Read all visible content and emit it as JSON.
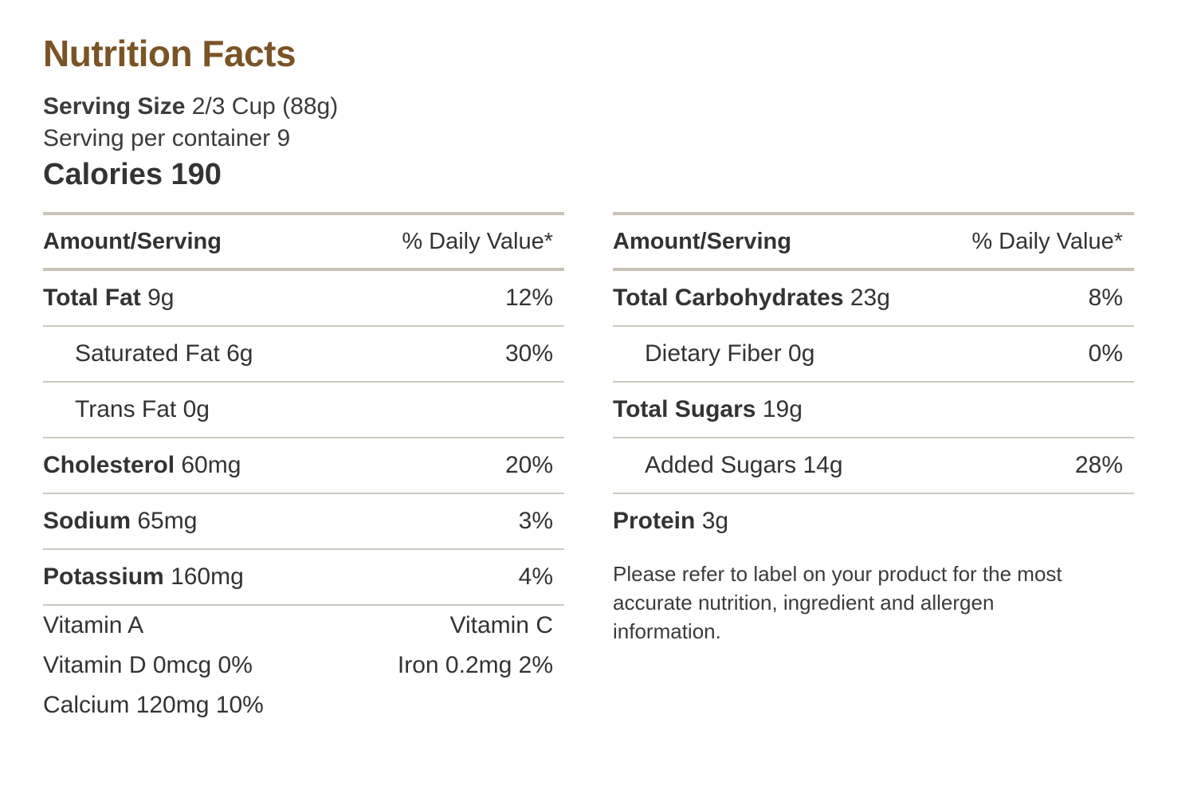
{
  "title": "Nutrition Facts",
  "serving": {
    "size_label": "Serving Size",
    "size_value": "2/3 Cup (88g)",
    "per_container": "Serving per container 9"
  },
  "calories": "Calories 190",
  "header": {
    "amount": "Amount/Serving",
    "dv": "% Daily Value*"
  },
  "left": {
    "rows": [
      {
        "name": "Total Fat",
        "amt": "9g",
        "dv": "12%"
      },
      {
        "name": "Saturated Fat 6g",
        "dv": "30%"
      },
      {
        "name": "Trans Fat 0g",
        "dv": ""
      },
      {
        "name": "Cholesterol",
        "amt": "60mg",
        "dv": "20%"
      },
      {
        "name": "Sodium",
        "amt": "65mg",
        "dv": "3%"
      },
      {
        "name": "Potassium",
        "amt": "160mg",
        "dv": "4%"
      }
    ],
    "vitamins": {
      "a": "Vitamin A",
      "c": "Vitamin C",
      "d": "Vitamin D 0mcg 0%",
      "iron": "Iron 0.2mg 2%",
      "calcium": "Calcium 120mg 10%"
    }
  },
  "right": {
    "rows": [
      {
        "name": "Total Carbohydrates",
        "amt": "23g",
        "dv": "8%"
      },
      {
        "name": "Dietary Fiber 0g",
        "dv": "0%"
      },
      {
        "name": "Total Sugars",
        "amt": "19g",
        "dv": ""
      },
      {
        "name": "Added Sugars 14g",
        "dv": "28%"
      },
      {
        "name": "Protein",
        "amt": "3g",
        "dv": ""
      }
    ],
    "note": "Please refer to label on your product for the most accurate nutrition, ingredient and allergen information."
  },
  "colors": {
    "title": "#7a5326",
    "rule": "#c9c3b6",
    "text": "#333333"
  }
}
